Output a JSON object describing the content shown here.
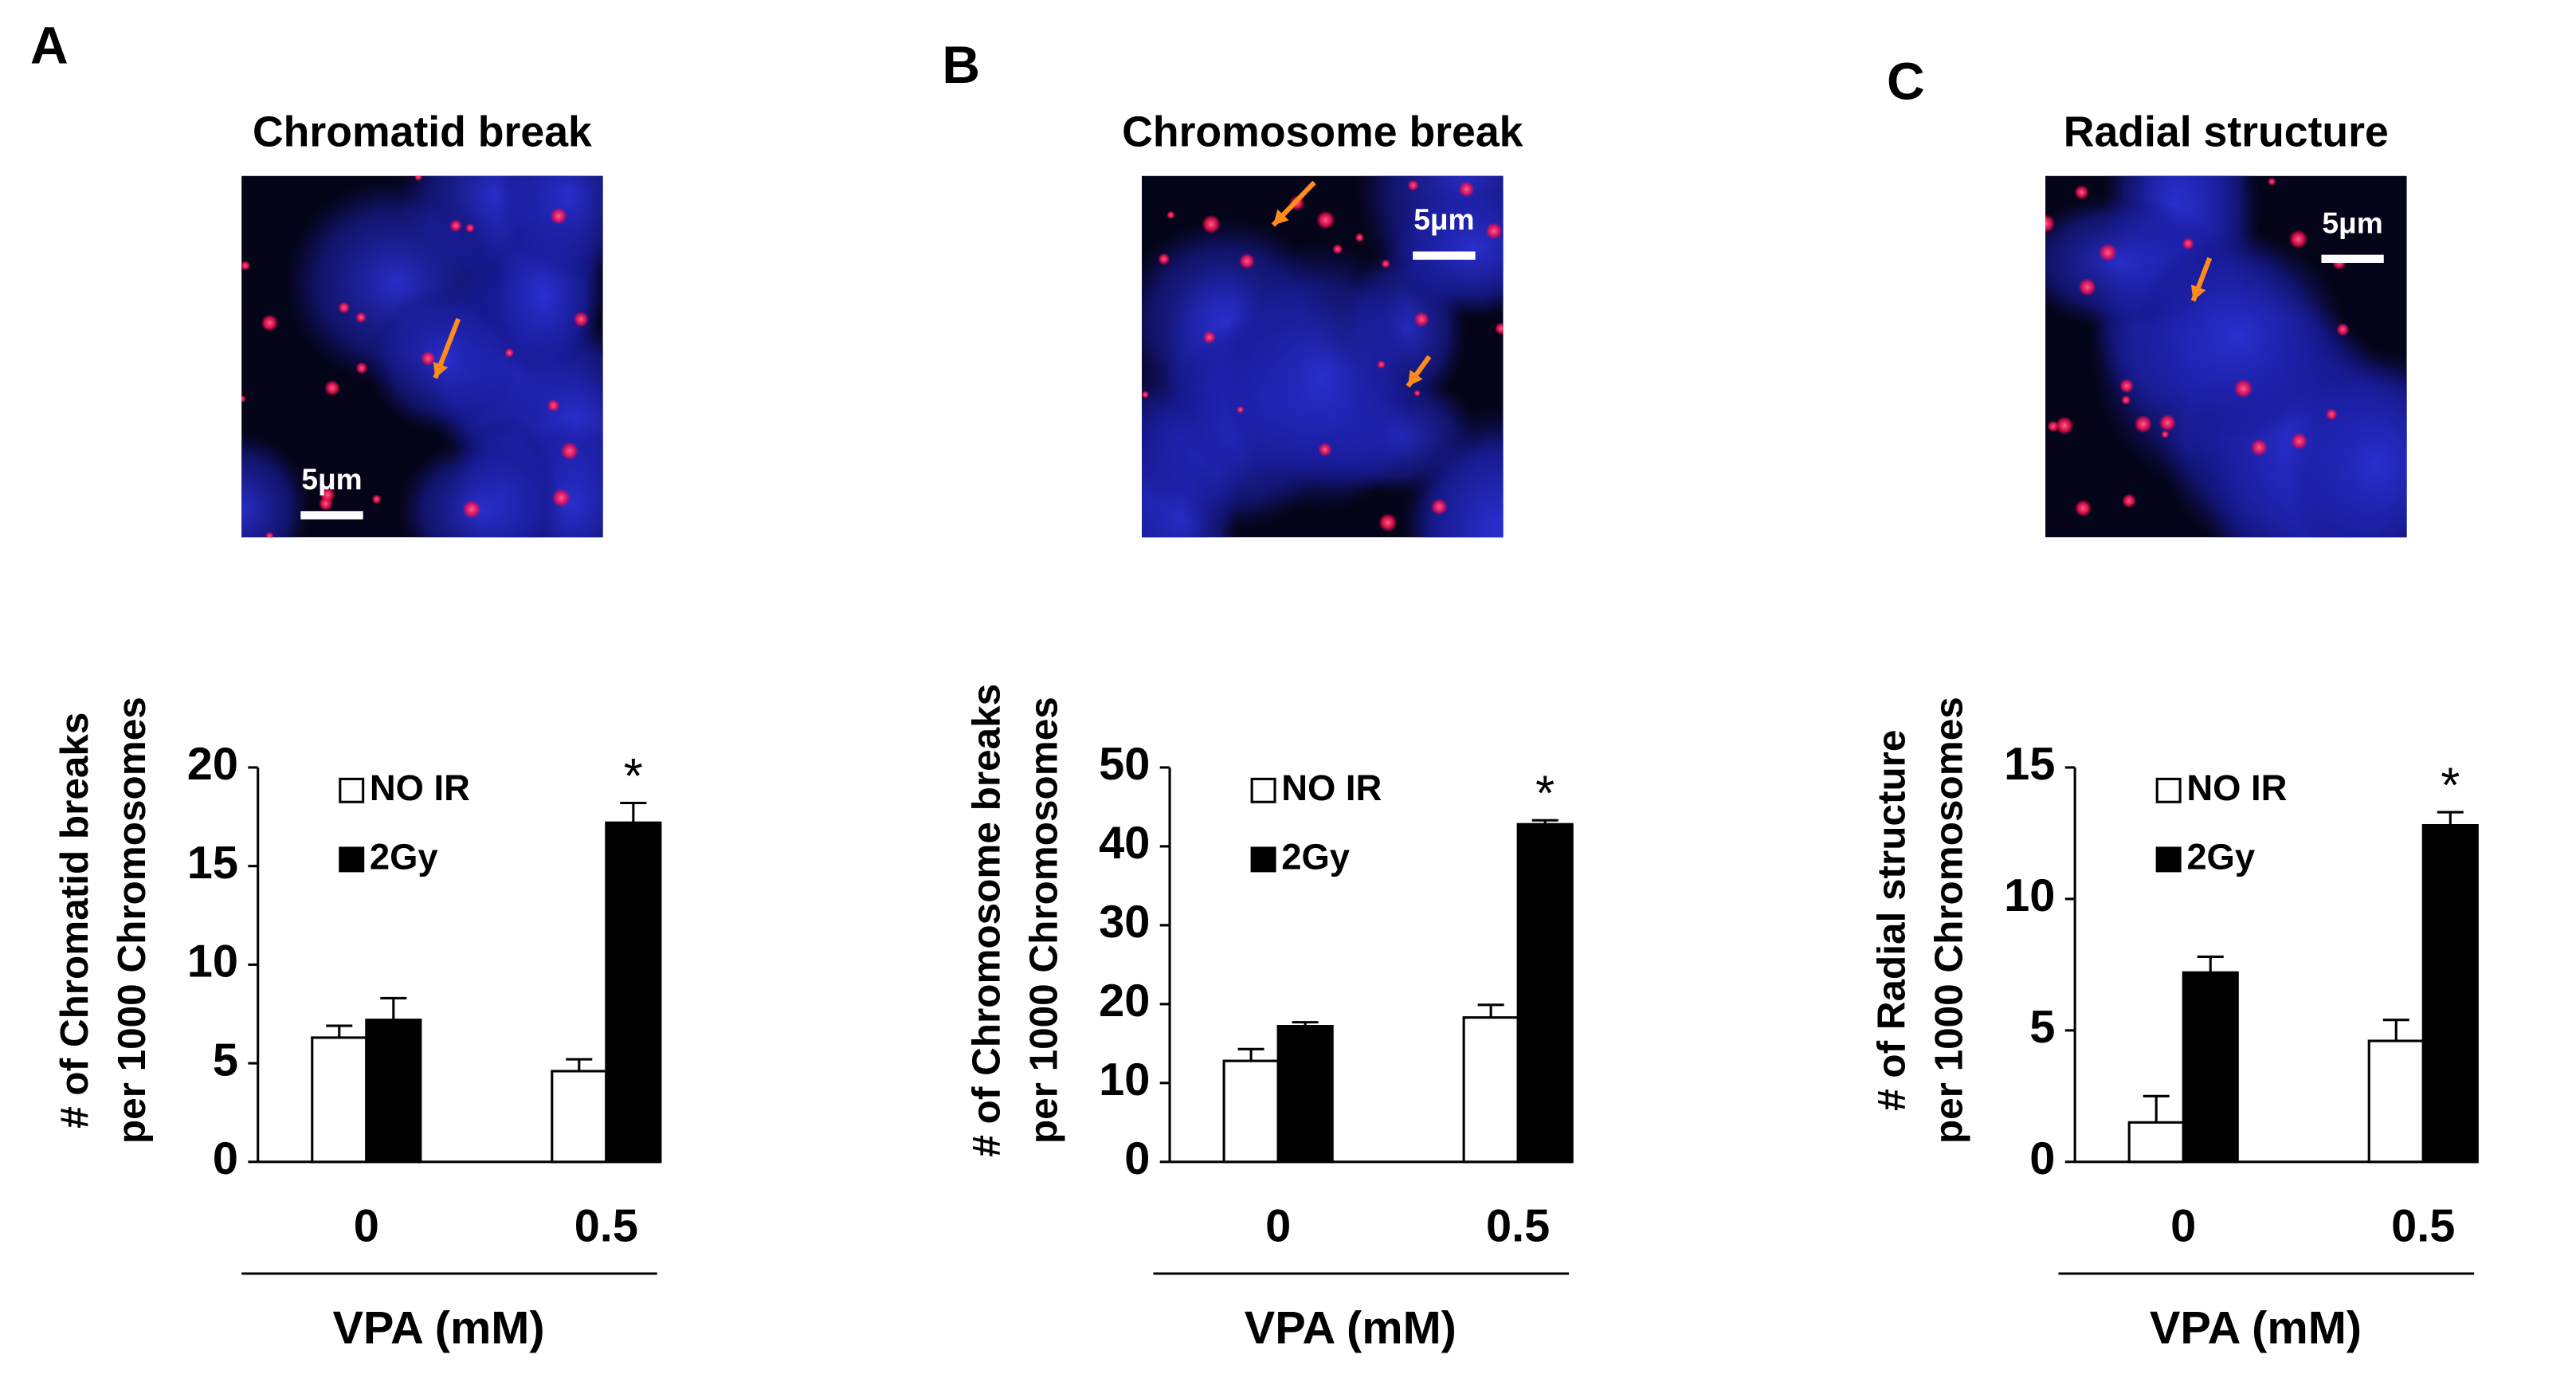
{
  "chart_data": [
    {
      "type": "bar",
      "panel": "A",
      "image_title": "Chromatid break",
      "scale_label": "5μm",
      "ylabel": [
        "# of Chromatid breaks",
        "per  1000 Chromosomes"
      ],
      "xlabel": "VPA (mM)",
      "categories": [
        "0",
        "0.5"
      ],
      "series": [
        {
          "name": "NO IR",
          "color": "#ffffff",
          "values": [
            6.3,
            4.6
          ],
          "errors": [
            0.6,
            0.6
          ]
        },
        {
          "name": "2Gy",
          "color": "#000000",
          "values": [
            7.2,
            17.2
          ],
          "errors": [
            1.1,
            1.0
          ]
        }
      ],
      "ylim": [
        0,
        20
      ],
      "yticks": [
        0,
        5,
        10,
        15,
        20
      ],
      "significance_label": "*"
    },
    {
      "type": "bar",
      "panel": "B",
      "image_title": "Chromosome break",
      "scale_label": "5μm",
      "ylabel": [
        "# of Chromosome breaks",
        "per  1000 Chromosomes"
      ],
      "xlabel": "VPA (mM)",
      "categories": [
        "0",
        "0.5"
      ],
      "series": [
        {
          "name": "NO IR",
          "color": "#ffffff",
          "values": [
            12.8,
            18.3
          ],
          "errors": [
            1.5,
            1.6
          ]
        },
        {
          "name": "2Gy",
          "color": "#000000",
          "values": [
            17.2,
            42.8
          ],
          "errors": [
            0.5,
            0.5
          ]
        }
      ],
      "ylim": [
        0,
        50
      ],
      "yticks": [
        0,
        10,
        20,
        30,
        40,
        50
      ],
      "significance_label": "*"
    },
    {
      "type": "bar",
      "panel": "C",
      "image_title": "Radial  structure",
      "scale_label": "5μm",
      "ylabel": [
        "# of Radial structure",
        "per  1000 Chromosomes"
      ],
      "xlabel": "VPA (mM)",
      "categories": [
        "0",
        "0.5"
      ],
      "series": [
        {
          "name": "NO IR",
          "color": "#ffffff",
          "values": [
            1.5,
            4.6
          ],
          "errors": [
            1.0,
            0.8
          ]
        },
        {
          "name": "2Gy",
          "color": "#000000",
          "values": [
            7.2,
            12.8
          ],
          "errors": [
            0.6,
            0.5
          ]
        }
      ],
      "ylim": [
        0,
        15
      ],
      "yticks": [
        0,
        5,
        10,
        15
      ],
      "significance_label": "*"
    }
  ]
}
